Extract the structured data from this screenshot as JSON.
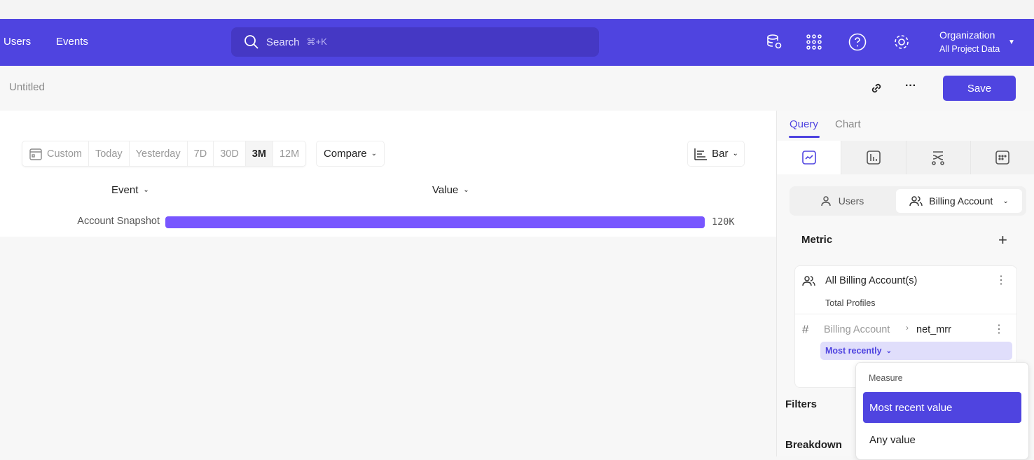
{
  "header": {
    "nav": [
      "Users",
      "Events"
    ],
    "search_placeholder": "Search",
    "search_shortcut": "⌘+K",
    "org_title": "Organization",
    "org_subtitle": "All Project Data"
  },
  "subbar": {
    "title": "Untitled",
    "save_label": "Save"
  },
  "toolbar": {
    "date_ranges": [
      "Custom",
      "Today",
      "Yesterday",
      "7D",
      "30D",
      "3M",
      "12M"
    ],
    "active_range": "3M",
    "compare_label": "Compare",
    "chart_type_label": "Bar"
  },
  "table": {
    "col_event": "Event",
    "col_value": "Value",
    "rows": [
      {
        "event": "Account Snapshot",
        "value_label": "120K",
        "value": 120000
      }
    ]
  },
  "colors": {
    "brand": "#4f44e0",
    "bar": "#7856ff"
  },
  "panel": {
    "tabs": [
      "Query",
      "Chart"
    ],
    "active_tab": "Query",
    "entity_users": "Users",
    "entity_billing": "Billing Account",
    "metric_heading": "Metric",
    "metric_name": "All Billing Account(s)",
    "metric_sub": "Total Profiles",
    "property_parent": "Billing Account",
    "property_name": "net_mrr",
    "aggregation": "Most recently",
    "filter_heading": "Filters",
    "breakdown_heading": "Breakdown",
    "dropdown": {
      "heading": "Measure",
      "options": [
        "Most recent value",
        "Any value"
      ],
      "selected": "Most recent value"
    }
  }
}
